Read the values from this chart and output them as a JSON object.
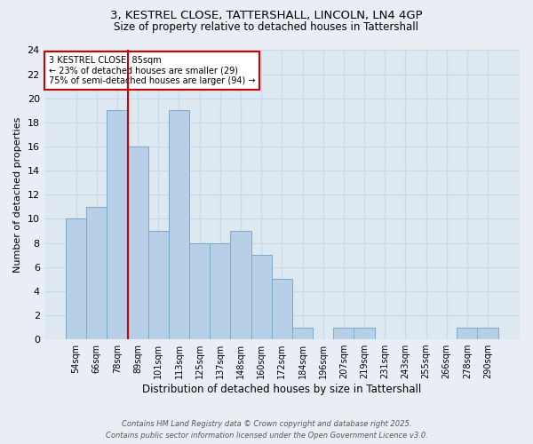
{
  "title_line1": "3, KESTREL CLOSE, TATTERSHALL, LINCOLN, LN4 4GP",
  "title_line2": "Size of property relative to detached houses in Tattershall",
  "categories": [
    "54sqm",
    "66sqm",
    "78sqm",
    "89sqm",
    "101sqm",
    "113sqm",
    "125sqm",
    "137sqm",
    "148sqm",
    "160sqm",
    "172sqm",
    "184sqm",
    "196sqm",
    "207sqm",
    "219sqm",
    "231sqm",
    "243sqm",
    "255sqm",
    "266sqm",
    "278sqm",
    "290sqm"
  ],
  "values": [
    10,
    11,
    19,
    16,
    9,
    19,
    8,
    8,
    9,
    7,
    5,
    1,
    0,
    1,
    1,
    0,
    0,
    0,
    0,
    1,
    1
  ],
  "bar_color": "#b8cfe8",
  "bar_edgecolor": "#7aaac8",
  "bar_linewidth": 0.7,
  "vline_color": "#cc0000",
  "vline_x": 2.5,
  "xlabel": "Distribution of detached houses by size in Tattershall",
  "ylabel": "Number of detached properties",
  "ylim": [
    0,
    24
  ],
  "yticks": [
    0,
    2,
    4,
    6,
    8,
    10,
    12,
    14,
    16,
    18,
    20,
    22,
    24
  ],
  "annotation_title": "3 KESTREL CLOSE: 85sqm",
  "annotation_line1": "← 23% of detached houses are smaller (29)",
  "annotation_line2": "75% of semi-detached houses are larger (94) →",
  "annotation_box_facecolor": "#ffffff",
  "annotation_box_edgecolor": "#cc0000",
  "grid_color": "#c8d8e8",
  "background_color": "#dde8f0",
  "fig_facecolor": "#e8eef4",
  "footer_line1": "Contains HM Land Registry data © Crown copyright and database right 2025.",
  "footer_line2": "Contains public sector information licensed under the Open Government Licence v3.0."
}
